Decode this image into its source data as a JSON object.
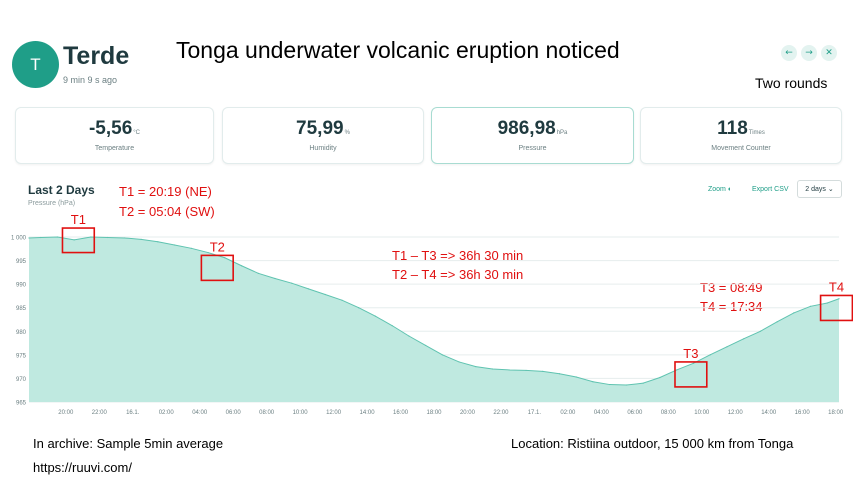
{
  "device": {
    "avatar_letter": "T",
    "name": "Terde",
    "updated": "9 min 9 s ago"
  },
  "title": "Tonga underwater volcanic eruption noticed",
  "top_note": "Two rounds",
  "nav": {
    "prev_icon": "arrow-left-icon",
    "next_icon": "arrow-right-icon",
    "close_icon": "close-icon"
  },
  "cards": [
    {
      "value": "-5,56",
      "unit": "°C",
      "label": "Temperature"
    },
    {
      "value": "75,99",
      "unit": "%",
      "label": "Humidity"
    },
    {
      "value": "986,98",
      "unit": "hPa",
      "label": "Pressure"
    },
    {
      "value": "118",
      "unit": "Times",
      "label": "Movement Counter"
    }
  ],
  "chart_section": {
    "title": "Last 2 Days",
    "subtitle": "Pressure (hPa)",
    "zoom_label": "Zoom",
    "export_label": "Export CSV",
    "range_select": "2 days"
  },
  "annotations": {
    "t1_def": "T1 = 20:19 (NE)",
    "t2_def": "T2 = 05:04 (SW)",
    "diff1": "T1 – T3 => 36h 30 min",
    "diff2": "T2 – T4 => 36h 30 min",
    "t3_def": "T3 = 08:49",
    "t4_def": "T4 = 17:34",
    "markers": [
      "T1",
      "T2",
      "T3",
      "T4"
    ]
  },
  "footer": {
    "archive": "In archive: Sample 5min average",
    "url": "https://ruuvi.com/",
    "location": "Location: Ristiina outdoor, 15 000 km from Tonga"
  },
  "colors": {
    "accent": "#1f9e88",
    "area_fill": "#bfe9e0",
    "area_line": "#5fc3b0",
    "annotation": "#e01010"
  },
  "chart_data": {
    "type": "area",
    "title": "Last 2 Days",
    "ylabel": "Pressure (hPa)",
    "ylim": [
      965,
      1000
    ],
    "yticks": [
      1000,
      995,
      990,
      985,
      980,
      975,
      970,
      965
    ],
    "x_tick_labels": [
      "20:00",
      "22:00",
      "16.1.",
      "02:00",
      "04:00",
      "06:00",
      "08:00",
      "10:00",
      "12:00",
      "14:00",
      "16:00",
      "18:00",
      "20:00",
      "22:00",
      "17.1.",
      "02:00",
      "04:00",
      "06:00",
      "08:00",
      "10:00",
      "12:00",
      "14:00",
      "16:00",
      "18:00"
    ],
    "x_hours": [
      -2.2,
      -1.5,
      -0.5,
      0.5,
      1.5,
      2.5,
      3.5,
      4.5,
      5.5,
      6.5,
      7.5,
      8.5,
      9.5,
      10.5,
      11.5,
      12.5,
      13.5,
      14.5,
      15.5,
      16.5,
      17.5,
      18.5,
      19.5,
      20.5,
      21.5,
      22.5,
      23.5,
      24.5,
      25.5,
      26.5,
      27.5,
      28.5,
      29.5,
      30.5,
      31.5,
      32.5,
      33.5,
      34.5,
      35.5,
      36.5,
      37.5,
      38.5,
      39.5,
      40.5,
      41.5,
      42.5,
      43.5,
      44.5,
      45.5,
      46.2
    ],
    "values": [
      999.8,
      999.9,
      1000.0,
      999.4,
      1000.0,
      999.9,
      999.8,
      999.5,
      999.0,
      998.3,
      997.6,
      996.7,
      995.6,
      993.9,
      992.3,
      991.2,
      990.2,
      989.0,
      987.8,
      986.6,
      985.0,
      983.2,
      981.2,
      979.0,
      977.0,
      975.0,
      973.5,
      972.5,
      972.0,
      971.8,
      971.7,
      971.5,
      971.0,
      970.3,
      969.3,
      968.7,
      968.6,
      969.0,
      970.2,
      971.8,
      973.2,
      975.0,
      976.7,
      978.4,
      980.0,
      982.0,
      983.9,
      985.3,
      986.0,
      986.9
    ],
    "highlight_boxes": [
      {
        "label": "T1",
        "x_range": [
          -0.2,
          1.7
        ],
        "y_range": [
          996.7,
          1001.9
        ]
      },
      {
        "label": "T2",
        "x_range": [
          8.1,
          10.0
        ],
        "y_range": [
          990.8,
          996.1
        ]
      },
      {
        "label": "T3",
        "x_range": [
          36.4,
          38.3
        ],
        "y_range": [
          968.2,
          973.5
        ]
      },
      {
        "label": "T4",
        "x_range": [
          45.1,
          47.0
        ],
        "y_range": [
          982.3,
          987.6
        ]
      }
    ],
    "grid": true,
    "legend": "none"
  }
}
